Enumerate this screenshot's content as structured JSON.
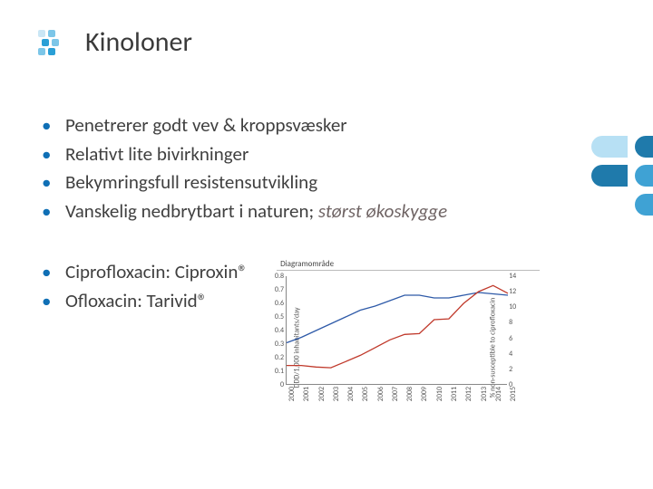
{
  "header": {
    "title": "Kinoloner",
    "logo_color_primary": "#2a9fd6",
    "logo_color_mid": "#7cc6e8",
    "logo_color_light": "#c9e6f5"
  },
  "decor": {
    "dark": "#1f7aab",
    "mid": "#3fa2d4",
    "light": "#b7e0f4"
  },
  "bullets_main": [
    "Penetrerer godt vev & kroppsvæsker",
    "Relativt lite bivirkninger",
    "Bekymringsfull resistensutvikling"
  ],
  "bullet_main_last_prefix": "Vanskelig nedbrytbart i naturen; ",
  "bullet_main_last_emph": "størst økoskygge",
  "bullets_secondary": [
    "Ciprofloxacin: Ciproxin®",
    "Ofloxacin: Tarivid®"
  ],
  "chart": {
    "title": "Diagramområde",
    "xlabels": [
      "2000",
      "2001",
      "2002",
      "2003",
      "2004",
      "2005",
      "2006",
      "2007",
      "2008",
      "2009",
      "2010",
      "2011",
      "2012",
      "2013",
      "2014",
      "2015"
    ],
    "y_left": {
      "min": 0,
      "max": 0.8,
      "ticks": [
        0,
        0.1,
        0.2,
        0.3,
        0.4,
        0.5,
        0.6,
        0.7,
        0.8
      ],
      "label": "DDD/1,000 inhabitants/day"
    },
    "y_right": {
      "min": 0,
      "max": 14,
      "ticks": [
        0,
        2,
        4,
        6,
        8,
        10,
        12,
        14
      ],
      "label": "% non-susceptible to ciprofloxacin"
    },
    "series": [
      {
        "name": "ddd",
        "axis": "left",
        "color": "#2e5aa8",
        "width": 1.3,
        "values": [
          0.31,
          0.35,
          0.4,
          0.45,
          0.5,
          0.55,
          0.58,
          0.62,
          0.66,
          0.66,
          0.64,
          0.64,
          0.66,
          0.68,
          0.67,
          0.66
        ]
      },
      {
        "name": "pct",
        "axis": "right",
        "color": "#c0392b",
        "width": 1.3,
        "values": [
          2.5,
          2.5,
          2.3,
          2.2,
          3.0,
          3.8,
          4.8,
          5.8,
          6.5,
          6.6,
          8.4,
          8.5,
          10.5,
          12.0,
          12.8,
          11.8
        ]
      }
    ],
    "grid_color": "#888888",
    "background": "#ffffff"
  }
}
